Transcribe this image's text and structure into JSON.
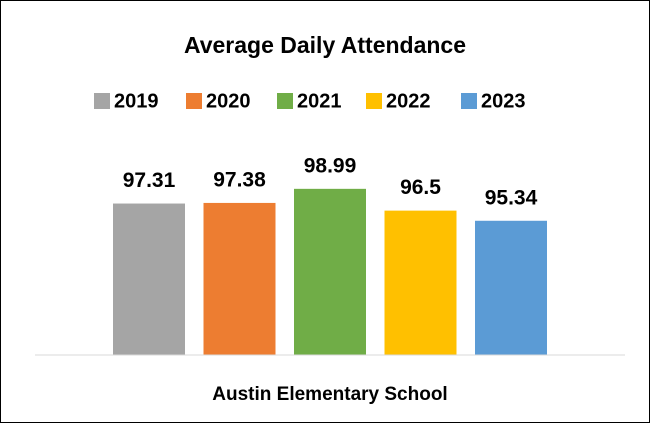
{
  "chart_data": {
    "type": "bar",
    "title": "Average Daily Attendance",
    "categories": [
      "Austin Elementary School"
    ],
    "series": [
      {
        "name": "2019",
        "color": "#a5a5a5",
        "values": [
          97.31
        ]
      },
      {
        "name": "2020",
        "color": "#ed7d31",
        "values": [
          97.38
        ]
      },
      {
        "name": "2021",
        "color": "#70ad47",
        "values": [
          98.99
        ]
      },
      {
        "name": "2022",
        "color": "#ffc000",
        "values": [
          96.5
        ]
      },
      {
        "name": "2023",
        "color": "#5b9bd5",
        "values": [
          95.34
        ]
      }
    ],
    "ylim": [
      80,
      100
    ],
    "legend": "top"
  }
}
